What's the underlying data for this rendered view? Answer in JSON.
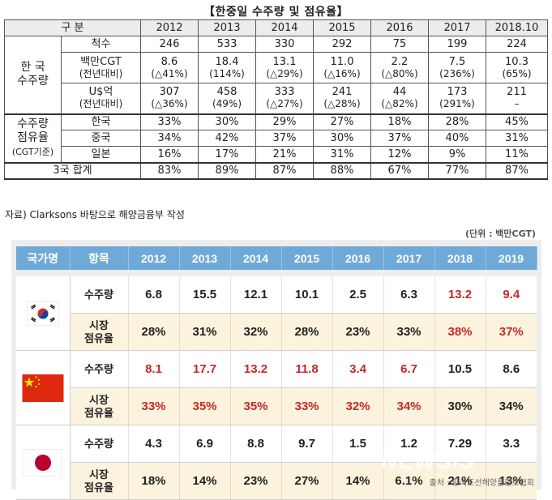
{
  "top": {
    "title": "【한중일 수주량 및 점유율】",
    "header": {
      "label": "구 분",
      "years": [
        "2012",
        "2013",
        "2014",
        "2015",
        "2016",
        "2017",
        "2018.10"
      ]
    },
    "korea_orders": {
      "group_line1": "한 국",
      "group_line2": "수주량",
      "ships": {
        "label": "척수",
        "values": [
          "246",
          "533",
          "330",
          "292",
          "75",
          "199",
          "224"
        ]
      },
      "cgt": {
        "label_line1": "백만CGT",
        "label_line2": "(전년대비)",
        "values": [
          "8.6",
          "18.4",
          "13.1",
          "11.0",
          "2.2",
          "7.5",
          "10.3"
        ],
        "changes": [
          "(△41%)",
          "(114%)",
          "(△29%)",
          "(△16%)",
          "(△80%)",
          "(236%)",
          "(65%)"
        ]
      },
      "usd": {
        "label_line1": "U$억",
        "label_line2": "(전년대비)",
        "values": [
          "307",
          "458",
          "333",
          "241",
          "44",
          "173",
          "211"
        ],
        "changes": [
          "(△36%)",
          "(49%)",
          "(△27%)",
          "(△28%)",
          "(△82%)",
          "(291%)",
          "–"
        ]
      }
    },
    "share": {
      "group_line1": "수주량",
      "group_line2": "점유율",
      "group_line3": "(CGT기준)",
      "rows": [
        {
          "label": "한국",
          "values": [
            "33%",
            "30%",
            "29%",
            "27%",
            "18%",
            "28%",
            "45%"
          ]
        },
        {
          "label": "중국",
          "values": [
            "34%",
            "42%",
            "37%",
            "30%",
            "37%",
            "40%",
            "31%"
          ]
        },
        {
          "label": "일본",
          "values": [
            "16%",
            "17%",
            "21%",
            "31%",
            "12%",
            "9%",
            "11%"
          ]
        }
      ]
    },
    "total": {
      "label": "3국 합계",
      "values": [
        "83%",
        "89%",
        "87%",
        "88%",
        "67%",
        "77%",
        "87%"
      ]
    }
  },
  "source_note": "자료) Clarksons 바탕으로 해양금융부 작성",
  "bottom": {
    "unit": "(단위 : 백만CGT)",
    "header": {
      "country": "국가명",
      "item": "항목",
      "years": [
        "2012",
        "2013",
        "2014",
        "2015",
        "2016",
        "2017",
        "2018",
        "2019"
      ]
    },
    "item_orders": "수주량",
    "item_share_line1": "시장",
    "item_share_line2": "점유율",
    "korea": {
      "orders": [
        "6.8",
        "15.5",
        "12.1",
        "10.1",
        "2.5",
        "6.3",
        "13.2",
        "9.4"
      ],
      "share": [
        "28%",
        "31%",
        "32%",
        "28%",
        "23%",
        "33%",
        "38%",
        "37%"
      ]
    },
    "china": {
      "orders": [
        "8.1",
        "17.7",
        "13.2",
        "11.8",
        "3.4",
        "6.7",
        "10.5",
        "8.6"
      ],
      "share": [
        "33%",
        "35%",
        "35%",
        "33%",
        "32%",
        "34%",
        "30%",
        "34%"
      ]
    },
    "japan": {
      "orders": [
        "4.3",
        "6.9",
        "8.8",
        "9.7",
        "1.5",
        "1.2",
        "7.29",
        "3.3"
      ],
      "share": [
        "18%",
        "14%",
        "23%",
        "27%",
        "14%",
        "6.1%",
        "21%",
        "13%"
      ]
    },
    "credit": "출처 : 한국조선해양플랜트협회",
    "watermark": "NEWSIS"
  },
  "colors": {
    "header_blue": "#6fa9d8",
    "share_row": "#fbf3dd",
    "highlight_red": "#c62828"
  }
}
